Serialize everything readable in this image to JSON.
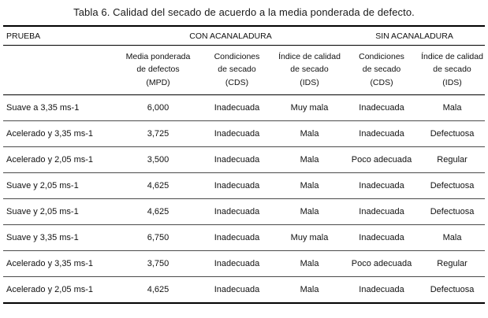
{
  "title": "Tabla 6. Calidad del secado de acuerdo a la media ponderada de defecto.",
  "table": {
    "headers": {
      "prueba": "PRUEBA",
      "group_con": "CON ACANALADURA",
      "group_sin": "SIN ACANALADURA",
      "columns": [
        "Media ponderada\nde defectos\n(MPD)",
        "Condiciones\nde secado\n(CDS)",
        "Índice de calidad\nde secado\n(IDS)",
        "Condiciones\nde secado\n(CDS)",
        "Índice de calidad\nde secado\n(IDS)"
      ]
    },
    "rows": [
      [
        "Suave a 3,35 ms-1",
        "6,000",
        "Inadecuada",
        "Muy mala",
        "Inadecuada",
        "Mala"
      ],
      [
        "Acelerado y 3,35 ms-1",
        "3,725",
        "Inadecuada",
        "Mala",
        "Inadecuada",
        "Defectuosa"
      ],
      [
        "Acelerado y 2,05 ms-1",
        "3,500",
        "Inadecuada",
        "Mala",
        "Poco adecuada",
        "Regular"
      ],
      [
        "Suave y 2,05 ms-1",
        "4,625",
        "Inadecuada",
        "Mala",
        "Inadecuada",
        "Defectuosa"
      ],
      [
        "Suave y 2,05 ms-1",
        "4,625",
        "Inadecuada",
        "Mala",
        "Inadecuada",
        "Defectuosa"
      ],
      [
        "Suave y 3,35 ms-1",
        "6,750",
        "Inadecuada",
        "Muy mala",
        "Inadecuada",
        "Mala"
      ],
      [
        "Acelerado y 3,35 ms-1",
        "3,750",
        "Inadecuada",
        "Mala",
        "Poco adecuada",
        "Regular"
      ],
      [
        "Acelerado y 2,05 ms-1",
        "4,625",
        "Inadecuada",
        "Mala",
        "Inadecuada",
        "Defectuosa"
      ]
    ]
  }
}
